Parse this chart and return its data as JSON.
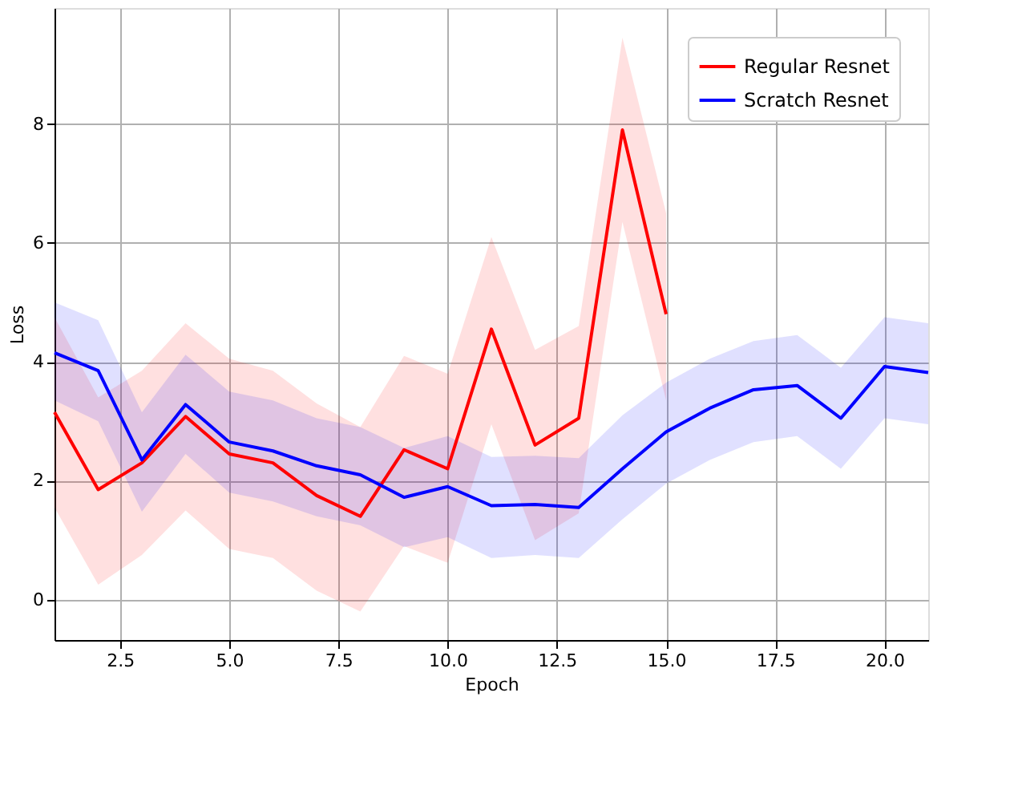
{
  "chart_data": {
    "type": "line",
    "xlabel": "Epoch",
    "ylabel": "Loss",
    "xlim": [
      1,
      21
    ],
    "ylim": [
      -0.68,
      9.95
    ],
    "xticks": [
      {
        "value": 2.5,
        "label": "2.5"
      },
      {
        "value": 5,
        "label": "5.0"
      },
      {
        "value": 7.5,
        "label": "7.5"
      },
      {
        "value": 10,
        "label": "10.0"
      },
      {
        "value": 12.5,
        "label": "12.5"
      },
      {
        "value": 15,
        "label": "15.0"
      },
      {
        "value": 17.5,
        "label": "17.5"
      },
      {
        "value": 20,
        "label": "20.0"
      }
    ],
    "yticks": [
      0,
      2,
      4,
      6,
      8
    ],
    "grid": true,
    "legend": "top right",
    "marker": "none",
    "line_style": "solid",
    "series": [
      {
        "name": "Regular Resnet",
        "color": "#ff0000",
        "x": [
          1,
          2,
          3,
          4,
          5,
          6,
          7,
          8,
          9,
          10,
          11,
          12,
          13,
          14,
          15
        ],
        "values": [
          3.15,
          1.85,
          2.3,
          3.08,
          2.45,
          2.3,
          1.75,
          1.4,
          2.52,
          2.2,
          4.55,
          2.6,
          3.05,
          7.9,
          4.8
        ],
        "lower": [
          1.55,
          0.25,
          0.75,
          1.5,
          0.85,
          0.7,
          0.15,
          -0.2,
          0.9,
          0.62,
          2.95,
          1.0,
          1.45,
          6.35,
          3.35
        ],
        "upper": [
          4.75,
          3.4,
          3.85,
          4.65,
          4.05,
          3.85,
          3.3,
          2.9,
          4.1,
          3.8,
          6.1,
          4.2,
          4.6,
          9.45,
          6.5
        ]
      },
      {
        "name": "Scratch Resnet",
        "color": "#0000ff",
        "x": [
          1,
          2,
          3,
          4,
          5,
          6,
          7,
          8,
          9,
          10,
          11,
          12,
          13,
          14,
          15,
          16,
          17,
          18,
          19,
          20,
          21
        ],
        "values": [
          4.15,
          3.85,
          2.35,
          3.28,
          2.65,
          2.5,
          2.25,
          2.1,
          1.72,
          1.9,
          1.58,
          1.6,
          1.55,
          2.2,
          2.82,
          3.22,
          3.53,
          3.6,
          3.05,
          3.92,
          3.82
        ],
        "lower": [
          3.35,
          3.0,
          1.48,
          2.45,
          1.8,
          1.65,
          1.4,
          1.25,
          0.88,
          1.05,
          0.7,
          0.75,
          0.7,
          1.35,
          1.95,
          2.35,
          2.65,
          2.75,
          2.2,
          3.05,
          2.95
        ],
        "upper": [
          5.0,
          4.7,
          3.15,
          4.12,
          3.5,
          3.35,
          3.05,
          2.9,
          2.55,
          2.75,
          2.4,
          2.42,
          2.38,
          3.1,
          3.65,
          4.05,
          4.35,
          4.45,
          3.9,
          4.75,
          4.65
        ]
      }
    ]
  }
}
